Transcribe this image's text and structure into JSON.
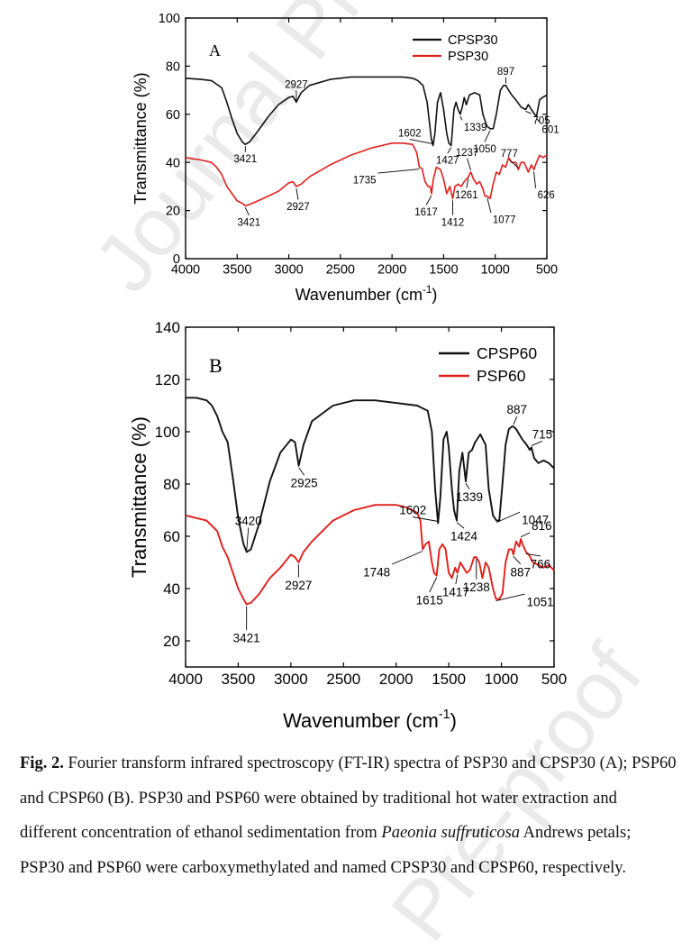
{
  "colors": {
    "black_series": "#111111",
    "red_series": "#e0201c",
    "watermark": "#d9d9d9"
  },
  "watermark": {
    "text_top": "Journal Pre-p",
    "text_bottom": "Pre-proof"
  },
  "chart_data": [
    {
      "type": "line",
      "panel_label": "A",
      "xlabel": "Wavenumber",
      "xlabel_unit_base": "(cm",
      "xlabel_unit_exp": "-1",
      "xlabel_unit_end": ")",
      "ylabel": "Transmittance  (%)",
      "xlim": [
        4000,
        500
      ],
      "ylim": [
        0,
        100
      ],
      "xticks": [
        4000,
        3500,
        3000,
        2500,
        2000,
        1500,
        1000,
        500
      ],
      "yticks": [
        0,
        20,
        40,
        60,
        80,
        100
      ],
      "legend_position": "top-right",
      "series": [
        {
          "name": "CPSP30",
          "color": "#111111",
          "x": [
            4000,
            3850,
            3750,
            3700,
            3650,
            3600,
            3550,
            3500,
            3450,
            3421,
            3380,
            3300,
            3200,
            3100,
            3000,
            2960,
            2927,
            2880,
            2800,
            2600,
            2400,
            2200,
            2000,
            1900,
            1800,
            1750,
            1700,
            1660,
            1620,
            1602,
            1585,
            1560,
            1530,
            1500,
            1470,
            1450,
            1427,
            1400,
            1380,
            1360,
            1339,
            1320,
            1300,
            1280,
            1250,
            1200,
            1150,
            1120,
            1080,
            1050,
            1020,
            990,
            950,
            920,
            897,
            870,
            840,
            800,
            750,
            705,
            680,
            650,
            601,
            570,
            540,
            500
          ],
          "y": [
            75,
            74.5,
            74,
            72.5,
            71,
            65,
            58,
            52,
            48.5,
            47.5,
            48.5,
            53,
            59,
            64,
            67,
            67.5,
            65,
            69,
            72,
            74.5,
            75.5,
            75.5,
            75.5,
            75.5,
            75,
            74,
            72,
            65,
            50,
            47,
            52,
            65,
            69,
            62,
            52,
            48,
            47,
            62,
            65,
            62,
            60,
            63,
            67,
            64,
            68,
            69,
            68,
            60,
            55,
            54,
            54,
            60,
            70,
            72,
            72,
            70,
            68,
            66,
            63,
            62,
            64,
            62,
            59,
            66,
            67,
            68
          ]
        },
        {
          "name": "PSP30",
          "color": "#e0201c",
          "x": [
            4000,
            3850,
            3750,
            3700,
            3650,
            3600,
            3550,
            3500,
            3450,
            3421,
            3380,
            3300,
            3200,
            3100,
            3000,
            2960,
            2927,
            2880,
            2800,
            2600,
            2400,
            2200,
            2100,
            2000,
            1900,
            1800,
            1760,
            1735,
            1710,
            1680,
            1650,
            1630,
            1617,
            1600,
            1570,
            1530,
            1500,
            1470,
            1440,
            1412,
            1390,
            1360,
            1330,
            1300,
            1261,
            1237,
            1210,
            1180,
            1150,
            1120,
            1100,
            1077,
            1050,
            1020,
            990,
            960,
            930,
            900,
            870,
            840,
            800,
            777,
            750,
            720,
            680,
            650,
            626,
            600,
            570,
            540,
            500
          ],
          "y": [
            42,
            41,
            40,
            38,
            35,
            30,
            27,
            24,
            23,
            22,
            22.5,
            24,
            26,
            28,
            31.5,
            32,
            30,
            31,
            34,
            39,
            43,
            46,
            47,
            48,
            48,
            47.5,
            44,
            38,
            37.5,
            32,
            30,
            30,
            27,
            33,
            38,
            37,
            33,
            27,
            30,
            25,
            30,
            31,
            30,
            32,
            34,
            36,
            33,
            31,
            32,
            29,
            26,
            26,
            25,
            31,
            36,
            35,
            39,
            38,
            42,
            40,
            40,
            37,
            40,
            40,
            36,
            39,
            37,
            40,
            43,
            42,
            43
          ]
        }
      ],
      "annotations": [
        {
          "text": "897",
          "x": 897,
          "y": 72
        },
        {
          "text": "2927",
          "x": 2927,
          "y": 65
        },
        {
          "text": "1602",
          "x": 1602,
          "y": 47
        },
        {
          "text": "1339",
          "x": 1339,
          "y": 60
        },
        {
          "text": "705",
          "x": 705,
          "y": 62
        },
        {
          "text": "601",
          "x": 601,
          "y": 59
        },
        {
          "text": "3421",
          "x": 3421,
          "y": 47.5
        },
        {
          "text": "1427",
          "x": 1427,
          "y": 47
        },
        {
          "text": "1050",
          "x": 1050,
          "y": 54
        },
        {
          "text": "1237",
          "x": 1237,
          "y": 36
        },
        {
          "text": "777",
          "x": 777,
          "y": 37
        },
        {
          "text": "1735",
          "x": 1735,
          "y": 38
        },
        {
          "text": "626",
          "x": 626,
          "y": 37
        },
        {
          "text": "1617",
          "x": 1617,
          "y": 27
        },
        {
          "text": "1261",
          "x": 1261,
          "y": 34
        },
        {
          "text": "1077",
          "x": 1077,
          "y": 26
        },
        {
          "text": "3421",
          "x": 3421,
          "y": 22
        },
        {
          "text": "2927",
          "x": 2927,
          "y": 30
        },
        {
          "text": "1412",
          "x": 1412,
          "y": 25
        }
      ]
    },
    {
      "type": "line",
      "panel_label": "B",
      "xlabel": "Wavenumber",
      "xlabel_unit_base": "(cm",
      "xlabel_unit_exp": "-1",
      "xlabel_unit_end": ")",
      "ylabel": "Transmittance  (%)",
      "xlim": [
        4000,
        500
      ],
      "ylim": [
        10,
        140
      ],
      "xticks": [
        4000,
        3500,
        3000,
        2500,
        2000,
        1500,
        1000,
        500
      ],
      "yticks": [
        20,
        40,
        60,
        80,
        100,
        120,
        140
      ],
      "legend_position": "top-right",
      "series": [
        {
          "name": "CPSP60",
          "color": "#111111",
          "x": [
            4000,
            3900,
            3800,
            3750,
            3700,
            3650,
            3600,
            3550,
            3500,
            3450,
            3420,
            3380,
            3300,
            3200,
            3100,
            3000,
            2960,
            2925,
            2880,
            2800,
            2600,
            2400,
            2200,
            2000,
            1800,
            1700,
            1660,
            1630,
            1602,
            1580,
            1550,
            1520,
            1500,
            1470,
            1450,
            1424,
            1400,
            1370,
            1339,
            1310,
            1280,
            1250,
            1200,
            1150,
            1120,
            1080,
            1047,
            1020,
            990,
            960,
            930,
            900,
            887,
            860,
            830,
            800,
            760,
            730,
            715,
            690,
            650,
            600,
            550,
            500
          ],
          "y": [
            113,
            113,
            112,
            110,
            106,
            100,
            96,
            82,
            67,
            57,
            54,
            55,
            65,
            81,
            92,
            97,
            96,
            87,
            95,
            104,
            110,
            112,
            112,
            111,
            110,
            108,
            100,
            78,
            65,
            75,
            97,
            100,
            94,
            78,
            70,
            66,
            85,
            92,
            81,
            92,
            93,
            96,
            99,
            95,
            78,
            68,
            66,
            66,
            80,
            95,
            101,
            102,
            102,
            101,
            99,
            97,
            95,
            93,
            94,
            90,
            88,
            89,
            88,
            86
          ]
        },
        {
          "name": "PSP60",
          "color": "#e0201c",
          "x": [
            4000,
            3900,
            3800,
            3750,
            3700,
            3650,
            3600,
            3550,
            3500,
            3450,
            3421,
            3380,
            3300,
            3200,
            3100,
            3000,
            2960,
            2927,
            2880,
            2800,
            2600,
            2400,
            2200,
            2000,
            1900,
            1800,
            1770,
            1748,
            1720,
            1690,
            1660,
            1640,
            1615,
            1590,
            1560,
            1530,
            1500,
            1470,
            1440,
            1417,
            1390,
            1360,
            1330,
            1300,
            1260,
            1238,
            1210,
            1180,
            1150,
            1120,
            1080,
            1051,
            1020,
            990,
            960,
            930,
            900,
            887,
            860,
            830,
            816,
            800,
            766,
            740,
            700,
            650,
            600,
            550,
            500
          ],
          "y": [
            68,
            67,
            66,
            64,
            62,
            56,
            52,
            46,
            40,
            36,
            34,
            34.5,
            38,
            44,
            48,
            53,
            52,
            50,
            54,
            58,
            66,
            70,
            72,
            72,
            71,
            69,
            66,
            55,
            57,
            58,
            50,
            46,
            45,
            55,
            57,
            55,
            46,
            44,
            48,
            46,
            50,
            48,
            46,
            47,
            52,
            52,
            50,
            44,
            50,
            48,
            40,
            36,
            36,
            38,
            50,
            55,
            55,
            53,
            58,
            56,
            59,
            57,
            54,
            53,
            50,
            49,
            48,
            49,
            47
          ]
        }
      ],
      "annotations": [
        {
          "text": "887",
          "x": 887,
          "y": 102
        },
        {
          "text": "715",
          "x": 715,
          "y": 94
        },
        {
          "text": "3420",
          "x": 3420,
          "y": 54
        },
        {
          "text": "2925",
          "x": 2925,
          "y": 87
        },
        {
          "text": "1602",
          "x": 1602,
          "y": 65
        },
        {
          "text": "1339",
          "x": 1339,
          "y": 81
        },
        {
          "text": "1047",
          "x": 1047,
          "y": 66
        },
        {
          "text": "1424",
          "x": 1424,
          "y": 66
        },
        {
          "text": "816",
          "x": 816,
          "y": 59
        },
        {
          "text": "1748",
          "x": 1748,
          "y": 55
        },
        {
          "text": "887",
          "x": 887,
          "y": 53
        },
        {
          "text": "766",
          "x": 766,
          "y": 54
        },
        {
          "text": "2927",
          "x": 2927,
          "y": 50
        },
        {
          "text": "1615",
          "x": 1615,
          "y": 45
        },
        {
          "text": "1417",
          "x": 1417,
          "y": 46
        },
        {
          "text": "1051",
          "x": 1051,
          "y": 36
        },
        {
          "text": "1238",
          "x": 1238,
          "y": 52
        },
        {
          "text": "3421",
          "x": 3421,
          "y": 34
        }
      ]
    }
  ],
  "caption": {
    "fig_label": "Fig. 2.",
    "text_1": " Fourier transform infrared spectroscopy (FT-IR) spectra of PSP30 and CPSP30 (A); PSP60 and CPSP60 (B). PSP30 and PSP60 were obtained by traditional hot water extraction and different concentration of ethanol sedimentation from ",
    "italic": "Paeonia suffruticosa",
    "text_2": " Andrews petals; PSP30 and PSP60 were carboxymethylated and named CPSP30 and CPSP60, respectively."
  }
}
